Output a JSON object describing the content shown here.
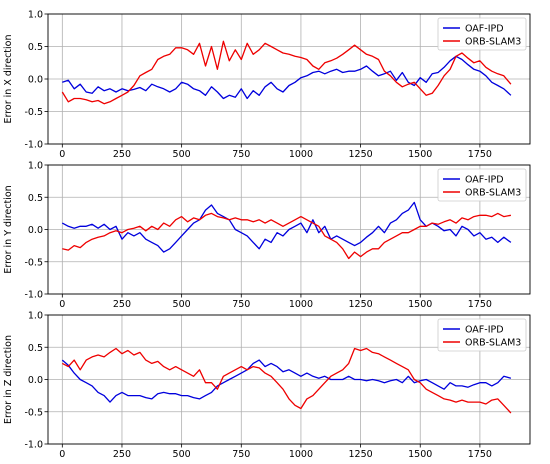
{
  "figure": {
    "background": "#ffffff"
  },
  "colors": {
    "OAF-IPD": "#0000dd",
    "ORB-SLAM3": "#ee0000",
    "grid": "#b0b0b0"
  },
  "chart_data": [
    {
      "type": "line",
      "ylabel": "Error in X direction",
      "xticks": [
        0,
        250,
        500,
        750,
        1000,
        1250,
        1500,
        1750
      ],
      "yticks": [
        -1.0,
        -0.5,
        0.0,
        0.5,
        1.0
      ],
      "xlim": [
        -60,
        1960
      ],
      "ylim": [
        -1.0,
        1.0
      ],
      "grid": true,
      "legend": "top-right",
      "series": [
        {
          "name": "OAF-IPD",
          "color": "#0000dd",
          "x": [
            0,
            25,
            50,
            75,
            100,
            125,
            150,
            175,
            200,
            225,
            250,
            275,
            300,
            325,
            350,
            375,
            400,
            425,
            450,
            475,
            500,
            525,
            550,
            575,
            600,
            625,
            650,
            675,
            700,
            725,
            750,
            775,
            800,
            825,
            850,
            875,
            900,
            925,
            950,
            975,
            1000,
            1025,
            1050,
            1075,
            1100,
            1125,
            1150,
            1175,
            1200,
            1225,
            1250,
            1275,
            1300,
            1325,
            1350,
            1375,
            1400,
            1425,
            1450,
            1475,
            1500,
            1525,
            1550,
            1575,
            1600,
            1625,
            1650,
            1675,
            1700,
            1725,
            1750,
            1775,
            1800,
            1825,
            1850,
            1880
          ],
          "y": [
            -0.05,
            -0.02,
            -0.15,
            -0.08,
            -0.2,
            -0.22,
            -0.12,
            -0.18,
            -0.15,
            -0.2,
            -0.15,
            -0.18,
            -0.16,
            -0.13,
            -0.18,
            -0.08,
            -0.12,
            -0.15,
            -0.2,
            -0.15,
            -0.05,
            -0.08,
            -0.15,
            -0.18,
            -0.25,
            -0.12,
            -0.2,
            -0.3,
            -0.25,
            -0.28,
            -0.15,
            -0.3,
            -0.18,
            -0.25,
            -0.12,
            -0.05,
            -0.15,
            -0.2,
            -0.1,
            -0.05,
            0.02,
            0.05,
            0.1,
            0.12,
            0.08,
            0.12,
            0.15,
            0.1,
            0.12,
            0.12,
            0.15,
            0.2,
            0.12,
            0.05,
            0.08,
            0.12,
            -0.02,
            0.1,
            -0.05,
            -0.1,
            0.02,
            -0.05,
            0.08,
            0.1,
            0.18,
            0.28,
            0.35,
            0.3,
            0.22,
            0.15,
            0.12,
            0.05,
            -0.05,
            -0.1,
            -0.15,
            -0.25
          ]
        },
        {
          "name": "ORB-SLAM3",
          "color": "#ee0000",
          "x": [
            0,
            25,
            50,
            75,
            100,
            125,
            150,
            175,
            200,
            225,
            250,
            275,
            300,
            325,
            350,
            375,
            400,
            425,
            450,
            475,
            500,
            525,
            550,
            575,
            600,
            625,
            650,
            675,
            700,
            725,
            750,
            775,
            800,
            825,
            850,
            875,
            900,
            925,
            950,
            975,
            1000,
            1025,
            1050,
            1075,
            1100,
            1125,
            1150,
            1175,
            1200,
            1225,
            1250,
            1275,
            1300,
            1325,
            1350,
            1375,
            1400,
            1425,
            1450,
            1475,
            1500,
            1525,
            1550,
            1575,
            1600,
            1625,
            1650,
            1675,
            1700,
            1725,
            1750,
            1775,
            1800,
            1825,
            1850,
            1880
          ],
          "y": [
            -0.2,
            -0.35,
            -0.3,
            -0.3,
            -0.32,
            -0.35,
            -0.33,
            -0.38,
            -0.35,
            -0.3,
            -0.25,
            -0.2,
            -0.1,
            0.05,
            0.1,
            0.15,
            0.3,
            0.35,
            0.38,
            0.48,
            0.48,
            0.45,
            0.38,
            0.55,
            0.2,
            0.5,
            0.15,
            0.58,
            0.28,
            0.45,
            0.3,
            0.55,
            0.38,
            0.45,
            0.55,
            0.5,
            0.45,
            0.4,
            0.38,
            0.35,
            0.33,
            0.3,
            0.2,
            0.15,
            0.25,
            0.28,
            0.32,
            0.38,
            0.45,
            0.52,
            0.45,
            0.38,
            0.35,
            0.3,
            0.12,
            0.05,
            -0.05,
            -0.12,
            -0.08,
            -0.05,
            -0.15,
            -0.25,
            -0.22,
            -0.1,
            0.05,
            0.15,
            0.35,
            0.4,
            0.32,
            0.25,
            0.28,
            0.18,
            0.12,
            0.08,
            0.05,
            -0.08
          ]
        }
      ]
    },
    {
      "type": "line",
      "ylabel": "Error in Y direction",
      "xticks": [
        0,
        250,
        500,
        750,
        1000,
        1250,
        1500,
        1750
      ],
      "yticks": [
        -1.0,
        -0.5,
        0.0,
        0.5,
        1.0
      ],
      "xlim": [
        -60,
        1960
      ],
      "ylim": [
        -1.0,
        1.0
      ],
      "grid": true,
      "legend": "top-right",
      "series": [
        {
          "name": "OAF-IPD",
          "color": "#0000dd",
          "x": [
            0,
            25,
            50,
            75,
            100,
            125,
            150,
            175,
            200,
            225,
            250,
            275,
            300,
            325,
            350,
            375,
            400,
            425,
            450,
            475,
            500,
            525,
            550,
            575,
            600,
            625,
            650,
            675,
            700,
            725,
            750,
            775,
            800,
            825,
            850,
            875,
            900,
            925,
            950,
            975,
            1000,
            1025,
            1050,
            1075,
            1100,
            1125,
            1150,
            1175,
            1200,
            1225,
            1250,
            1275,
            1300,
            1325,
            1350,
            1375,
            1400,
            1425,
            1450,
            1475,
            1500,
            1525,
            1550,
            1575,
            1600,
            1625,
            1650,
            1675,
            1700,
            1725,
            1750,
            1775,
            1800,
            1825,
            1850,
            1880
          ],
          "y": [
            0.1,
            0.05,
            0.02,
            0.05,
            0.05,
            0.08,
            0.02,
            0.08,
            0.0,
            0.05,
            -0.15,
            -0.05,
            -0.1,
            -0.05,
            -0.15,
            -0.2,
            -0.25,
            -0.35,
            -0.3,
            -0.2,
            -0.1,
            0.0,
            0.1,
            0.15,
            0.3,
            0.38,
            0.25,
            0.2,
            0.15,
            0.0,
            -0.05,
            -0.1,
            -0.2,
            -0.3,
            -0.15,
            -0.2,
            -0.05,
            -0.1,
            0.0,
            0.05,
            0.1,
            -0.05,
            0.15,
            -0.05,
            0.05,
            -0.15,
            -0.1,
            -0.15,
            -0.2,
            -0.25,
            -0.2,
            -0.12,
            -0.05,
            0.05,
            -0.05,
            0.1,
            0.15,
            0.25,
            0.3,
            0.42,
            0.15,
            0.05,
            0.1,
            0.05,
            -0.02,
            0.0,
            -0.1,
            0.05,
            0.0,
            -0.1,
            -0.05,
            -0.15,
            -0.12,
            -0.2,
            -0.12,
            -0.2
          ]
        },
        {
          "name": "ORB-SLAM3",
          "color": "#ee0000",
          "x": [
            0,
            25,
            50,
            75,
            100,
            125,
            150,
            175,
            200,
            225,
            250,
            275,
            300,
            325,
            350,
            375,
            400,
            425,
            450,
            475,
            500,
            525,
            550,
            575,
            600,
            625,
            650,
            675,
            700,
            725,
            750,
            775,
            800,
            825,
            850,
            875,
            900,
            925,
            950,
            975,
            1000,
            1025,
            1050,
            1075,
            1100,
            1125,
            1150,
            1175,
            1200,
            1225,
            1250,
            1275,
            1300,
            1325,
            1350,
            1375,
            1400,
            1425,
            1450,
            1475,
            1500,
            1525,
            1550,
            1575,
            1600,
            1625,
            1650,
            1675,
            1700,
            1725,
            1750,
            1775,
            1800,
            1825,
            1850,
            1880
          ],
          "y": [
            -0.3,
            -0.32,
            -0.25,
            -0.28,
            -0.2,
            -0.15,
            -0.12,
            -0.1,
            -0.05,
            -0.02,
            -0.05,
            0.0,
            0.02,
            0.05,
            -0.02,
            0.05,
            0.0,
            0.1,
            0.05,
            0.15,
            0.2,
            0.12,
            0.18,
            0.15,
            0.22,
            0.25,
            0.2,
            0.18,
            0.15,
            0.18,
            0.15,
            0.15,
            0.12,
            0.15,
            0.1,
            0.15,
            0.1,
            0.05,
            0.1,
            0.15,
            0.2,
            0.15,
            0.1,
            0.05,
            -0.1,
            -0.15,
            -0.2,
            -0.3,
            -0.45,
            -0.35,
            -0.42,
            -0.35,
            -0.3,
            -0.3,
            -0.2,
            -0.15,
            -0.1,
            -0.05,
            -0.05,
            0.0,
            0.05,
            0.05,
            0.1,
            0.08,
            0.12,
            0.15,
            0.1,
            0.18,
            0.15,
            0.2,
            0.22,
            0.22,
            0.2,
            0.25,
            0.2,
            0.22
          ]
        }
      ]
    },
    {
      "type": "line",
      "ylabel": "Error in Z direction",
      "xticks": [
        0,
        250,
        500,
        750,
        1000,
        1250,
        1500,
        1750
      ],
      "yticks": [
        -1.0,
        -0.5,
        0.0,
        0.5,
        1.0
      ],
      "xlim": [
        -60,
        1960
      ],
      "ylim": [
        -1.0,
        1.0
      ],
      "grid": true,
      "legend": "top-right",
      "series": [
        {
          "name": "OAF-IPD",
          "color": "#0000dd",
          "x": [
            0,
            25,
            50,
            75,
            100,
            125,
            150,
            175,
            200,
            225,
            250,
            275,
            300,
            325,
            350,
            375,
            400,
            425,
            450,
            475,
            500,
            525,
            550,
            575,
            600,
            625,
            650,
            675,
            700,
            725,
            750,
            775,
            800,
            825,
            850,
            875,
            900,
            925,
            950,
            975,
            1000,
            1025,
            1050,
            1075,
            1100,
            1125,
            1150,
            1175,
            1200,
            1225,
            1250,
            1275,
            1300,
            1325,
            1350,
            1375,
            1400,
            1425,
            1450,
            1475,
            1500,
            1525,
            1550,
            1575,
            1600,
            1625,
            1650,
            1675,
            1700,
            1725,
            1750,
            1775,
            1800,
            1825,
            1850,
            1880
          ],
          "y": [
            0.3,
            0.22,
            0.1,
            0.0,
            -0.05,
            -0.1,
            -0.2,
            -0.25,
            -0.35,
            -0.25,
            -0.2,
            -0.25,
            -0.25,
            -0.25,
            -0.28,
            -0.3,
            -0.22,
            -0.2,
            -0.22,
            -0.22,
            -0.25,
            -0.25,
            -0.28,
            -0.3,
            -0.25,
            -0.2,
            -0.1,
            -0.05,
            0.0,
            0.05,
            0.1,
            0.15,
            0.25,
            0.3,
            0.2,
            0.25,
            0.2,
            0.12,
            0.15,
            0.1,
            0.05,
            0.1,
            0.05,
            0.02,
            0.05,
            0.0,
            0.0,
            0.0,
            0.05,
            0.0,
            0.0,
            -0.02,
            0.0,
            -0.02,
            -0.05,
            -0.02,
            0.0,
            -0.05,
            0.05,
            -0.05,
            -0.02,
            0.0,
            -0.05,
            -0.1,
            -0.15,
            -0.05,
            -0.1,
            -0.1,
            -0.12,
            -0.08,
            -0.05,
            -0.05,
            -0.1,
            -0.05,
            0.05,
            0.02
          ]
        },
        {
          "name": "ORB-SLAM3",
          "color": "#ee0000",
          "x": [
            0,
            25,
            50,
            75,
            100,
            125,
            150,
            175,
            200,
            225,
            250,
            275,
            300,
            325,
            350,
            375,
            400,
            425,
            450,
            475,
            500,
            525,
            550,
            575,
            600,
            625,
            650,
            675,
            700,
            725,
            750,
            775,
            800,
            825,
            850,
            875,
            900,
            925,
            950,
            975,
            1000,
            1025,
            1050,
            1075,
            1100,
            1125,
            1150,
            1175,
            1200,
            1225,
            1250,
            1275,
            1300,
            1325,
            1350,
            1375,
            1400,
            1425,
            1450,
            1475,
            1500,
            1525,
            1550,
            1575,
            1600,
            1625,
            1650,
            1675,
            1700,
            1725,
            1750,
            1775,
            1800,
            1825,
            1850,
            1880
          ],
          "y": [
            0.25,
            0.2,
            0.3,
            0.15,
            0.3,
            0.35,
            0.38,
            0.35,
            0.42,
            0.48,
            0.4,
            0.45,
            0.38,
            0.42,
            0.3,
            0.25,
            0.28,
            0.2,
            0.15,
            0.2,
            0.15,
            0.1,
            0.05,
            0.15,
            -0.05,
            -0.05,
            -0.15,
            0.05,
            0.1,
            0.15,
            0.2,
            0.15,
            0.2,
            0.18,
            0.1,
            0.05,
            -0.05,
            -0.15,
            -0.3,
            -0.4,
            -0.45,
            -0.3,
            -0.25,
            -0.15,
            -0.05,
            0.05,
            0.1,
            0.15,
            0.25,
            0.48,
            0.45,
            0.48,
            0.42,
            0.4,
            0.35,
            0.3,
            0.25,
            0.2,
            0.15,
            0.0,
            -0.05,
            -0.15,
            -0.2,
            -0.25,
            -0.3,
            -0.32,
            -0.35,
            -0.32,
            -0.35,
            -0.35,
            -0.35,
            -0.38,
            -0.32,
            -0.3,
            -0.4,
            -0.52
          ]
        }
      ]
    }
  ]
}
